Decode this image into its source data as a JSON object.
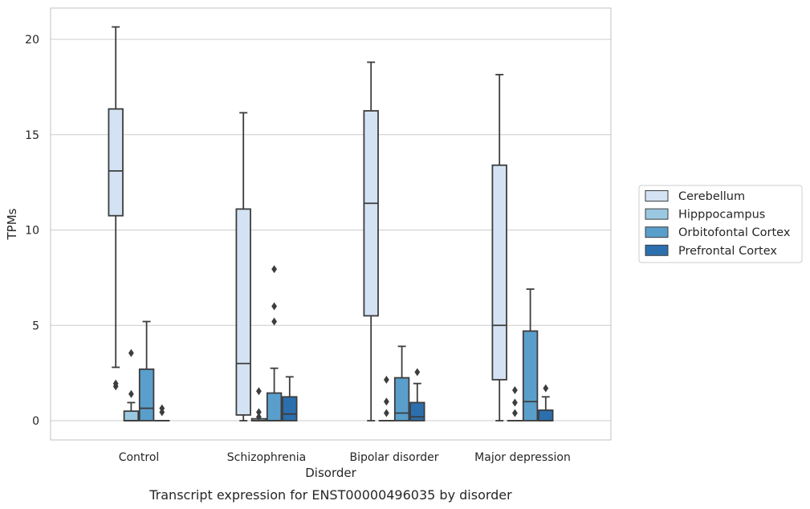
{
  "chart_data": {
    "type": "box",
    "title": "",
    "caption": "Transcript expression for ENST00000496035 by disorder",
    "xlabel": "Disorder",
    "ylabel": "TPMs",
    "ylim": [
      -1,
      21.7
    ],
    "yticks": [
      0,
      5,
      10,
      15,
      20
    ],
    "grid": "horizontal",
    "legend_position": "right",
    "categories": [
      "Control",
      "Schizophrenia",
      "Bipolar disorder",
      "Major depression"
    ],
    "series": [
      {
        "name": "Cerebellum",
        "color": "#d3e3f3",
        "boxes": [
          {
            "whisker_low": 2.8,
            "q1": 10.75,
            "median": 13.1,
            "q3": 16.35,
            "whisker_high": 20.65,
            "outliers": [
              1.8,
              1.95
            ]
          },
          {
            "whisker_low": 0.0,
            "q1": 0.3,
            "median": 3.0,
            "q3": 11.1,
            "whisker_high": 16.15,
            "outliers": []
          },
          {
            "whisker_low": 0.0,
            "q1": 5.5,
            "median": 11.4,
            "q3": 16.25,
            "whisker_high": 18.8,
            "outliers": []
          },
          {
            "whisker_low": 0.0,
            "q1": 2.15,
            "median": 5.0,
            "q3": 13.4,
            "whisker_high": 18.15,
            "outliers": []
          }
        ]
      },
      {
        "name": "Hipppocampus",
        "color": "#9ac8e0",
        "boxes": [
          {
            "whisker_low": 0.0,
            "q1": 0.0,
            "median": 0.0,
            "q3": 0.5,
            "whisker_high": 0.95,
            "outliers": [
              1.4,
              3.55
            ]
          },
          {
            "whisker_low": 0.0,
            "q1": 0.0,
            "median": 0.0,
            "q3": 0.1,
            "whisker_high": 0.1,
            "outliers": [
              0.2,
              0.45,
              1.55
            ]
          },
          {
            "whisker_low": 0.0,
            "q1": 0.0,
            "median": 0.0,
            "q3": 0.0,
            "whisker_high": 0.0,
            "outliers": [
              0.4,
              1.0,
              2.15
            ]
          },
          {
            "whisker_low": 0.0,
            "q1": 0.0,
            "median": 0.0,
            "q3": 0.0,
            "whisker_high": 0.0,
            "outliers": [
              0.4,
              0.95,
              1.6
            ]
          }
        ]
      },
      {
        "name": "Orbitofontal Cortex",
        "color": "#5a9fcc",
        "boxes": [
          {
            "whisker_low": 0.0,
            "q1": 0.0,
            "median": 0.65,
            "q3": 2.7,
            "whisker_high": 5.2,
            "outliers": []
          },
          {
            "whisker_low": 0.0,
            "q1": 0.0,
            "median": 0.0,
            "q3": 1.45,
            "whisker_high": 2.75,
            "outliers": [
              5.2,
              6.0,
              7.95
            ]
          },
          {
            "whisker_low": 0.0,
            "q1": 0.0,
            "median": 0.4,
            "q3": 2.25,
            "whisker_high": 3.9,
            "outliers": []
          },
          {
            "whisker_low": 0.0,
            "q1": 0.0,
            "median": 1.0,
            "q3": 4.7,
            "whisker_high": 6.9,
            "outliers": []
          }
        ]
      },
      {
        "name": "Prefrontal Cortex",
        "color": "#2c6fae",
        "boxes": [
          {
            "whisker_low": 0.0,
            "q1": 0.0,
            "median": 0.0,
            "q3": 0.0,
            "whisker_high": 0.0,
            "outliers": [
              0.45,
              0.65
            ]
          },
          {
            "whisker_low": 0.0,
            "q1": 0.0,
            "median": 0.35,
            "q3": 1.25,
            "whisker_high": 2.3,
            "outliers": []
          },
          {
            "whisker_low": 0.0,
            "q1": 0.0,
            "median": 0.2,
            "q3": 0.95,
            "whisker_high": 1.95,
            "outliers": [
              2.55
            ]
          },
          {
            "whisker_low": 0.0,
            "q1": 0.0,
            "median": 0.0,
            "q3": 0.55,
            "whisker_high": 1.25,
            "outliers": [
              1.7
            ]
          }
        ]
      }
    ]
  }
}
